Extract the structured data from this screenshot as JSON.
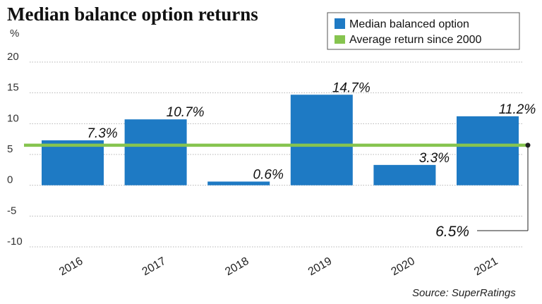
{
  "chart_data": {
    "type": "bar",
    "title": "Median balance option returns",
    "unit_label": "%",
    "categories": [
      "2016",
      "2017",
      "2018",
      "2019",
      "2020",
      "2021"
    ],
    "series": [
      {
        "name": "Median balanced option",
        "values": [
          7.3,
          10.7,
          0.6,
          14.7,
          3.3,
          11.2
        ],
        "value_labels": [
          "7.3%",
          "10.7%",
          "0.6%",
          "14.7%",
          "3.3%",
          "11.2%"
        ],
        "color": "#1e7ac4"
      }
    ],
    "reference_line": {
      "name": "Average return since 2000",
      "value": 6.5,
      "label": "6.5%",
      "color": "#86c44f"
    },
    "ylim": [
      -10,
      20
    ],
    "yticks": [
      "20",
      "15",
      "10",
      "5",
      "0",
      "-5",
      "-10"
    ],
    "ytick_values": [
      20,
      15,
      10,
      5,
      0,
      -5,
      -10
    ],
    "grid": true,
    "legend_position": "top-right",
    "source": "Source: SuperRatings"
  }
}
